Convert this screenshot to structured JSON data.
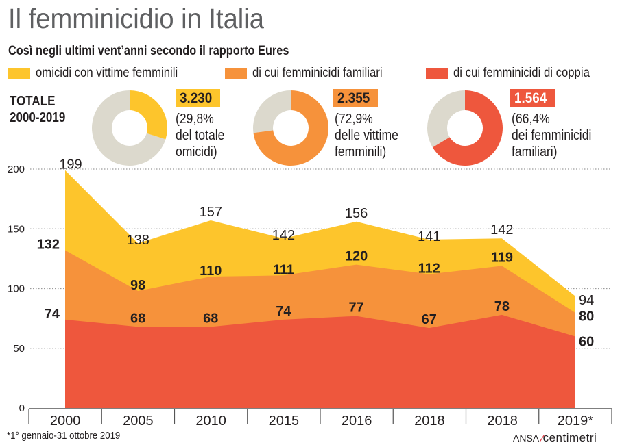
{
  "header": {
    "title": "Il femminicidio in Italia",
    "subtitle": "Così negli ultimi vent’anni secondo il rapporto Eures"
  },
  "legend": [
    {
      "label": "omicidi con vittime femminili",
      "color": "#fdc52c"
    },
    {
      "label": "di cui femminicidi familiari",
      "color": "#f6923b"
    },
    {
      "label": "di cui femminicidi di coppia",
      "color": "#ee573d"
    }
  ],
  "totals": {
    "label_line1": "TOTALE",
    "label_line2": "2000-2019",
    "donuts": [
      {
        "value": "3.230",
        "share_percent": 29.8,
        "note": "(29,8%\ndel totale\nomicidi)",
        "color": "#fdc52c",
        "badge_text_color": "#231f20"
      },
      {
        "value": "2.355",
        "share_percent": 72.9,
        "note": "(72,9%\ndelle vittime\nfemminili)",
        "color": "#f6923b",
        "badge_text_color": "#231f20"
      },
      {
        "value": "1.564",
        "share_percent": 66.4,
        "note": "(66,4%\ndei femminicidi\nfamiliari)",
        "color": "#ee573d",
        "badge_text_color": "#ffffff"
      }
    ],
    "remainder_color": "#dcd9cd"
  },
  "chart_data": {
    "type": "area",
    "title": "Il femminicidio in Italia",
    "xlabel": "",
    "ylabel": "",
    "categories": [
      "2000",
      "2005",
      "2010",
      "2015",
      "2016",
      "2018",
      "2018",
      "2019*"
    ],
    "ylim": [
      0,
      200
    ],
    "yticks": [
      0,
      50,
      100,
      150,
      200
    ],
    "grid": true,
    "series": [
      {
        "name": "omicidi con vittime femminili",
        "color": "#fdc52c",
        "values": [
          199,
          138,
          157,
          142,
          156,
          141,
          142,
          94
        ]
      },
      {
        "name": "di cui femminicidi familiari",
        "color": "#f6923b",
        "values": [
          132,
          98,
          110,
          111,
          120,
          112,
          119,
          80
        ]
      },
      {
        "name": "di cui femminicidi di coppia",
        "color": "#ee573d",
        "values": [
          74,
          68,
          68,
          74,
          77,
          67,
          78,
          60
        ]
      }
    ]
  },
  "footer": {
    "footnote": "*1° gennaio-31 ottobre 2019",
    "source": "ANSA",
    "brand": "centimetri"
  }
}
